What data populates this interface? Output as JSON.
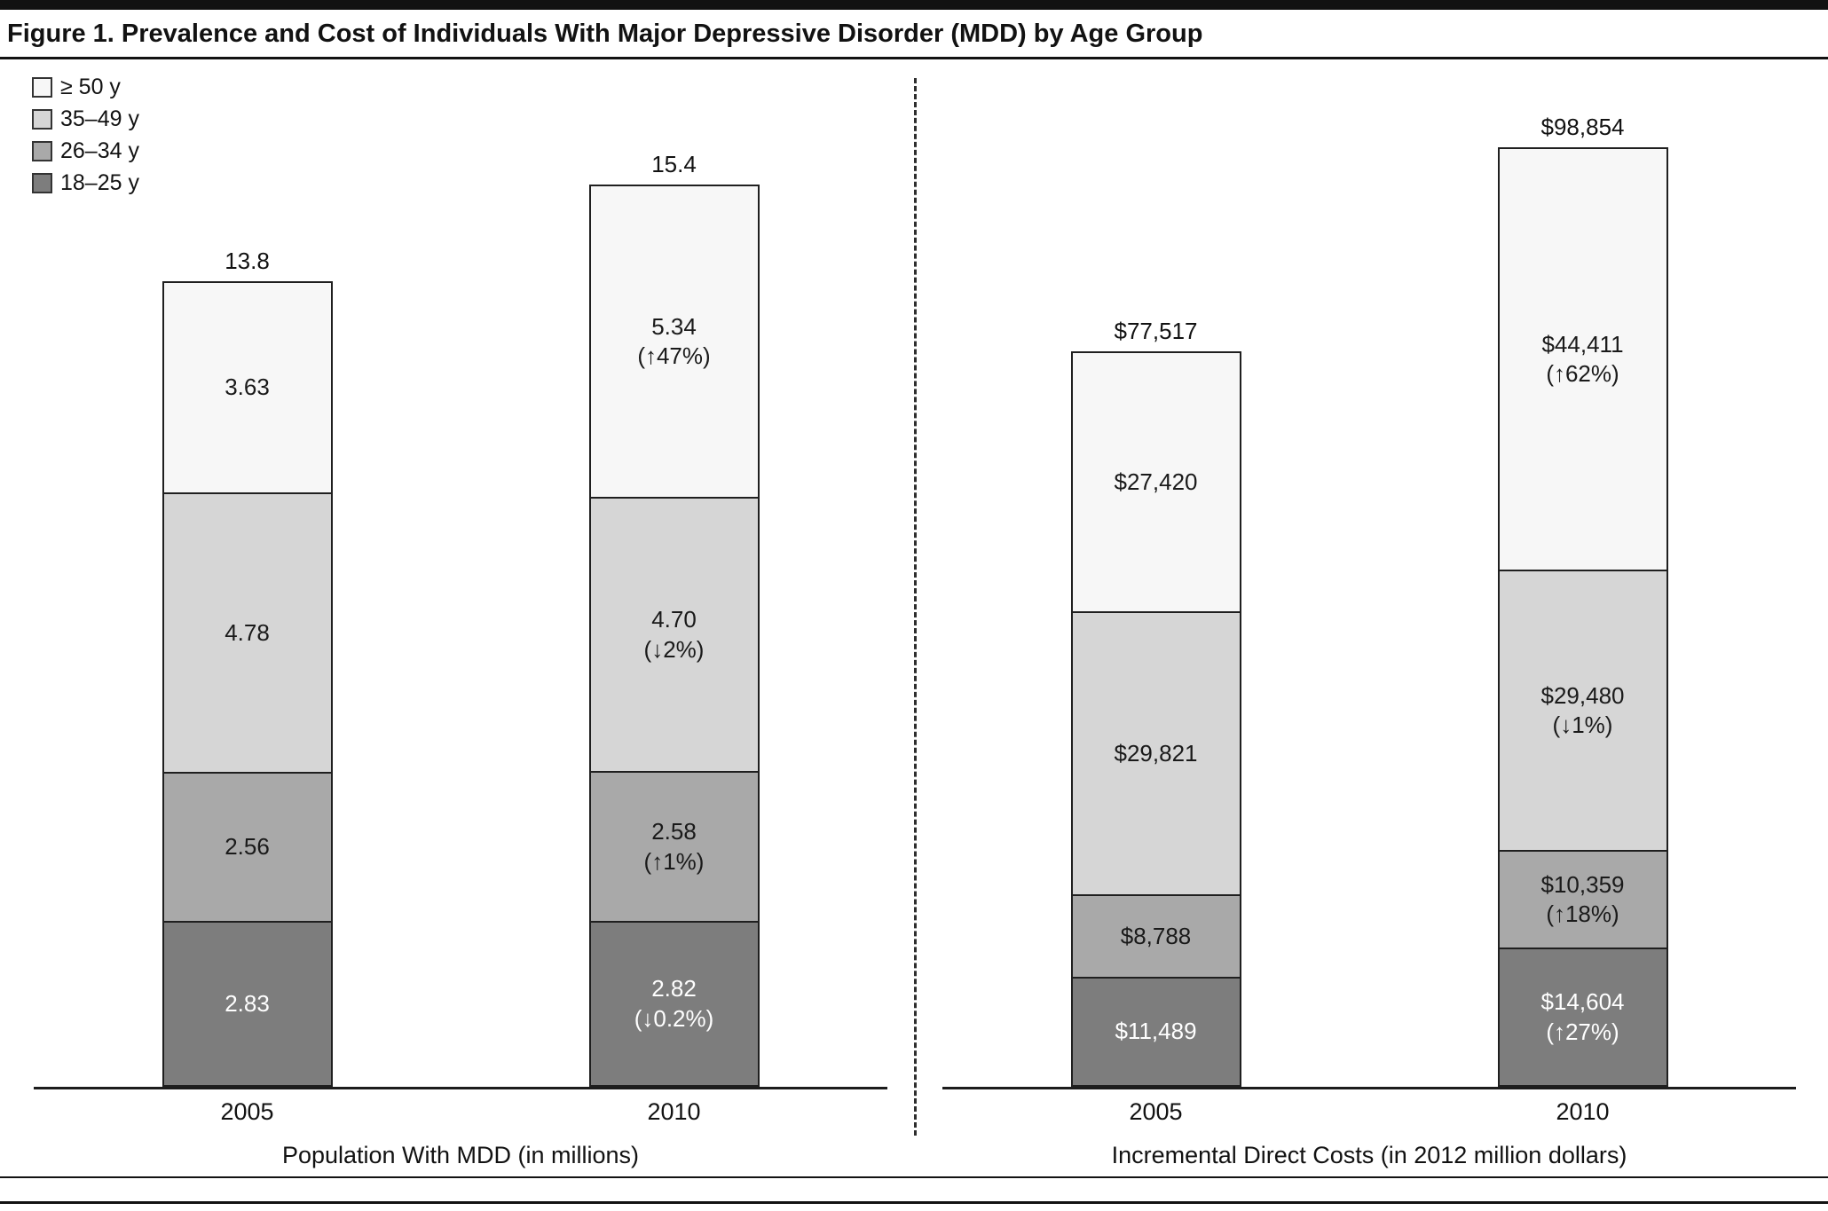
{
  "figure": {
    "title": "Figure 1. Prevalence and Cost of Individuals With Major Depressive Disorder (MDD) by Age Group"
  },
  "legend": {
    "items": [
      {
        "label": "≥ 50 y",
        "color": "#f7f7f7",
        "text_color": "#1a1a1a"
      },
      {
        "label": "35–49 y",
        "color": "#d6d6d6",
        "text_color": "#1a1a1a"
      },
      {
        "label": "26–34 y",
        "color": "#a9a9a9",
        "text_color": "#1a1a1a"
      },
      {
        "label": "18–25 y",
        "color": "#7d7d7d",
        "text_color": "#ffffff"
      }
    ]
  },
  "chart_data": [
    {
      "type": "bar",
      "stacked": true,
      "xlabel": "Population With MDD (in millions)",
      "categories": [
        "2005",
        "2010"
      ],
      "segments_order_bottom_to_top": [
        "18–25 y",
        "26–34 y",
        "35–49 y",
        "≥ 50 y"
      ],
      "bars": [
        {
          "category": "2005",
          "total": 13.8,
          "total_label": "13.8",
          "segments": [
            {
              "group": "18–25 y",
              "value": 2.83,
              "label": "2.83"
            },
            {
              "group": "26–34 y",
              "value": 2.56,
              "label": "2.56"
            },
            {
              "group": "35–49 y",
              "value": 4.78,
              "label": "4.78"
            },
            {
              "group": "≥ 50 y",
              "value": 3.63,
              "label": "3.63"
            }
          ]
        },
        {
          "category": "2010",
          "total": 15.4,
          "total_label": "15.4",
          "segments": [
            {
              "group": "18–25 y",
              "value": 2.82,
              "label": "2.82",
              "change": "(↓0.2%)"
            },
            {
              "group": "26–34 y",
              "value": 2.58,
              "label": "2.58",
              "change": "(↑1%)"
            },
            {
              "group": "35–49 y",
              "value": 4.7,
              "label": "4.70",
              "change": "(↓2%)"
            },
            {
              "group": "≥ 50 y",
              "value": 5.34,
              "label": "5.34",
              "change": "(↑47%)"
            }
          ]
        }
      ]
    },
    {
      "type": "bar",
      "stacked": true,
      "xlabel": "Incremental Direct Costs (in 2012 million dollars)",
      "categories": [
        "2005",
        "2010"
      ],
      "segments_order_bottom_to_top": [
        "18–25 y",
        "26–34 y",
        "35–49 y",
        "≥ 50 y"
      ],
      "bars": [
        {
          "category": "2005",
          "total": 77517,
          "total_label": "$77,517",
          "segments": [
            {
              "group": "18–25 y",
              "value": 11489,
              "label": "$11,489"
            },
            {
              "group": "26–34 y",
              "value": 8788,
              "label": "$8,788"
            },
            {
              "group": "35–49 y",
              "value": 29821,
              "label": "$29,821"
            },
            {
              "group": "≥ 50 y",
              "value": 27420,
              "label": "$27,420"
            }
          ]
        },
        {
          "category": "2010",
          "total": 98854,
          "total_label": "$98,854",
          "segments": [
            {
              "group": "18–25 y",
              "value": 14604,
              "label": "$14,604",
              "change": "(↑27%)"
            },
            {
              "group": "26–34 y",
              "value": 10359,
              "label": "$10,359",
              "change": "(↑18%)"
            },
            {
              "group": "35–49 y",
              "value": 29480,
              "label": "$29,480",
              "change": "(↓1%)"
            },
            {
              "group": "≥ 50 y",
              "value": 44411,
              "label": "$44,411",
              "change": "(↑62%)"
            }
          ]
        }
      ]
    }
  ]
}
